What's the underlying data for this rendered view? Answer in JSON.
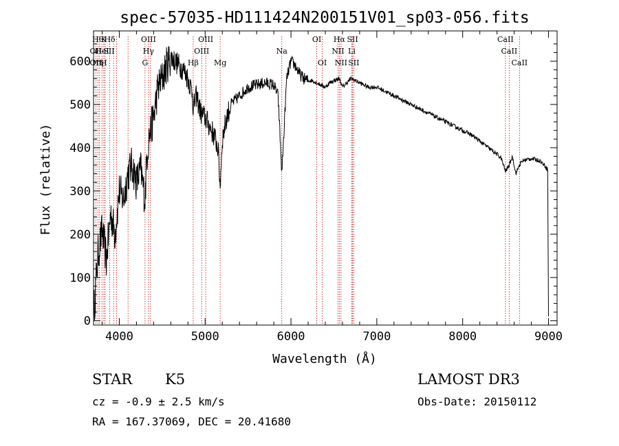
{
  "chart_data": {
    "type": "line",
    "title": "spec-57035-HD111424N200151V01_sp03-056.fits",
    "xlabel": "Wavelength (Å)",
    "ylabel": "Flux (relative)",
    "xlim": [
      3700,
      9100
    ],
    "ylim": [
      -10,
      670
    ],
    "xticks": [
      4000,
      5000,
      6000,
      7000,
      8000,
      9000
    ],
    "yticks": [
      0,
      100,
      200,
      300,
      400,
      500,
      600
    ],
    "series": [
      {
        "name": "spectrum",
        "x": [
          3700,
          3750,
          3800,
          3850,
          3900,
          3950,
          4000,
          4050,
          4100,
          4150,
          4200,
          4250,
          4300,
          4320,
          4350,
          4400,
          4450,
          4500,
          4550,
          4600,
          4650,
          4700,
          4750,
          4800,
          4850,
          4861,
          4900,
          4950,
          5000,
          5050,
          5100,
          5150,
          5175,
          5200,
          5250,
          5300,
          5400,
          5500,
          5600,
          5700,
          5800,
          5850,
          5893,
          5950,
          6000,
          6050,
          6100,
          6150,
          6200,
          6250,
          6300,
          6350,
          6400,
          6450,
          6500,
          6563,
          6600,
          6650,
          6700,
          6750,
          6800,
          6900,
          7000,
          7100,
          7200,
          7300,
          7400,
          7500,
          7600,
          7700,
          7800,
          7900,
          8000,
          8100,
          8200,
          8300,
          8400,
          8450,
          8498,
          8542,
          8580,
          8620,
          8662,
          8700,
          8800,
          8900,
          8950,
          8990,
          9000
        ],
        "values": [
          10,
          150,
          210,
          140,
          250,
          200,
          300,
          280,
          340,
          360,
          320,
          350,
          280,
          380,
          430,
          470,
          540,
          560,
          590,
          610,
          600,
          590,
          580,
          560,
          530,
          490,
          520,
          480,
          470,
          450,
          430,
          400,
          310,
          420,
          470,
          500,
          520,
          540,
          545,
          550,
          545,
          520,
          340,
          560,
          600,
          590,
          570,
          560,
          555,
          555,
          550,
          545,
          540,
          550,
          555,
          560,
          540,
          550,
          560,
          555,
          550,
          540,
          540,
          530,
          520,
          510,
          500,
          490,
          480,
          470,
          460,
          450,
          440,
          430,
          415,
          400,
          385,
          375,
          345,
          360,
          380,
          340,
          360,
          370,
          375,
          370,
          360,
          350,
          10
        ]
      }
    ],
    "line_markers": [
      {
        "w": 3750,
        "row": 0,
        "label": "Hθ"
      },
      {
        "w": 3820,
        "row": 0,
        "label": "K"
      },
      {
        "w": 3889,
        "row": 0,
        "label": "Hδ"
      },
      {
        "w": 4340,
        "row": 0,
        "label": "OIII"
      },
      {
        "w": 5007,
        "row": 0,
        "label": "OIII"
      },
      {
        "w": 6300,
        "row": 0,
        "label": "OI"
      },
      {
        "w": 6563,
        "row": 0,
        "label": "Hα"
      },
      {
        "w": 6717,
        "row": 0,
        "label": "SII"
      },
      {
        "w": 8498,
        "row": 0,
        "label": "CaII"
      },
      {
        "w": 3727,
        "row": 1,
        "label": "OII"
      },
      {
        "w": 3800,
        "row": 1,
        "label": "HeI"
      },
      {
        "w": 3880,
        "row": 1,
        "label": "SII"
      },
      {
        "w": 4340,
        "row": 1,
        "label": "Hγ"
      },
      {
        "w": 4959,
        "row": 1,
        "label": "OIII"
      },
      {
        "w": 5893,
        "row": 1,
        "label": "Na"
      },
      {
        "w": 6548,
        "row": 1,
        "label": "NII"
      },
      {
        "w": 6708,
        "row": 1,
        "label": "Li"
      },
      {
        "w": 8542,
        "row": 1,
        "label": "CaII"
      },
      {
        "w": 3727,
        "row": 2,
        "label": "OII"
      },
      {
        "w": 3750,
        "row": 2,
        "label": "Hη"
      },
      {
        "w": 3820,
        "row": 2,
        "label": "H"
      },
      {
        "w": 4300,
        "row": 2,
        "label": "G"
      },
      {
        "w": 4861,
        "row": 2,
        "label": "Hβ"
      },
      {
        "w": 5175,
        "row": 2,
        "label": "Mg"
      },
      {
        "w": 6364,
        "row": 2,
        "label": "OI"
      },
      {
        "w": 6583,
        "row": 2,
        "label": "NII"
      },
      {
        "w": 6731,
        "row": 2,
        "label": "SII"
      },
      {
        "w": 8662,
        "row": 2,
        "label": "CaII"
      }
    ],
    "marker_lines": [
      3727,
      3750,
      3770,
      3798,
      3820,
      3835,
      3889,
      3934,
      3968,
      4102,
      4300,
      4340,
      4363,
      4861,
      4959,
      5007,
      5175,
      5893,
      6300,
      6364,
      6548,
      6563,
      6583,
      6708,
      6717,
      6731,
      8498,
      8542,
      8662
    ],
    "line_color": "#000000",
    "marker_color": "#cc0000"
  },
  "info": {
    "object_class": "STAR",
    "subclass": "K5",
    "survey": "LAMOST DR3",
    "cz": "cz = -0.9 ± 2.5 km/s",
    "obs_date": "Obs-Date: 20150112",
    "coords": "RA = 167.37069, DEC =  20.41680"
  }
}
